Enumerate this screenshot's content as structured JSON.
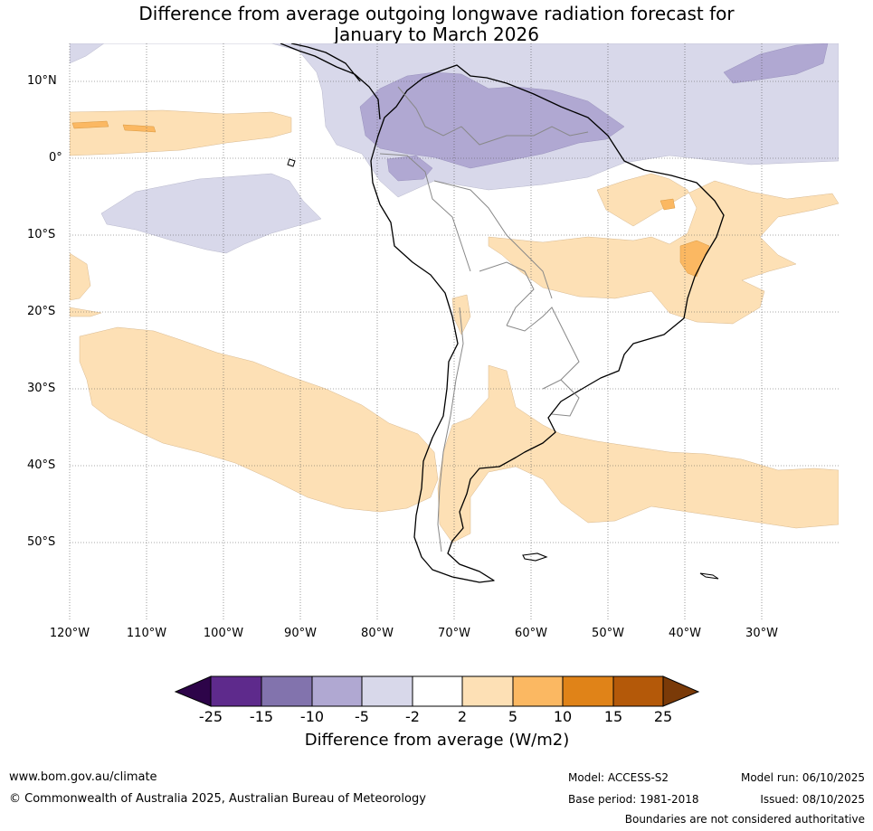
{
  "title": {
    "line1": "Difference from average outgoing longwave radiation forecast for",
    "line2": "January to March 2026"
  },
  "map": {
    "region": "South America",
    "lat_labels": [
      "10°N",
      "0°",
      "10°S",
      "20°S",
      "30°S",
      "40°S",
      "50°S"
    ],
    "lon_labels": [
      "120°W",
      "110°W",
      "100°W",
      "90°W",
      "80°W",
      "70°W",
      "60°W",
      "50°W",
      "40°W",
      "30°W"
    ],
    "lat_range": [
      -60,
      15
    ],
    "lon_range": [
      -120,
      -20
    ],
    "colors": {
      "lt_purple": "#d8d8ea",
      "md_purple": "#b0a8d2",
      "lt_orange": "#fde0b5",
      "md_orange": "#fbb862",
      "coast": "#000000",
      "border": "#888888"
    }
  },
  "colorbar": {
    "ticks": [
      "-25",
      "-15",
      "-10",
      "-5",
      "-2",
      "2",
      "5",
      "10",
      "15",
      "25"
    ],
    "bins": [
      "#5e2a8c",
      "#8273ad",
      "#b0a8d2",
      "#d8d8ea",
      "#ffffff",
      "#fde0b5",
      "#fbb862",
      "#e08318",
      "#b45909"
    ],
    "under_color": "#2d0449",
    "over_color": "#7a3a08",
    "title": "Difference from average (W/m2)"
  },
  "footer": {
    "website": "www.bom.gov.au/climate",
    "copyright": "© Commonwealth of Australia 2025, Australian Bureau of Meteorology",
    "model": "Model: ACCESS-S2",
    "base_period": "Base period: 1981-2018",
    "model_run": "Model run: 06/10/2025",
    "issued": "Issued: 08/10/2025",
    "boundaries_note": "Boundaries are not considered authoritative"
  }
}
